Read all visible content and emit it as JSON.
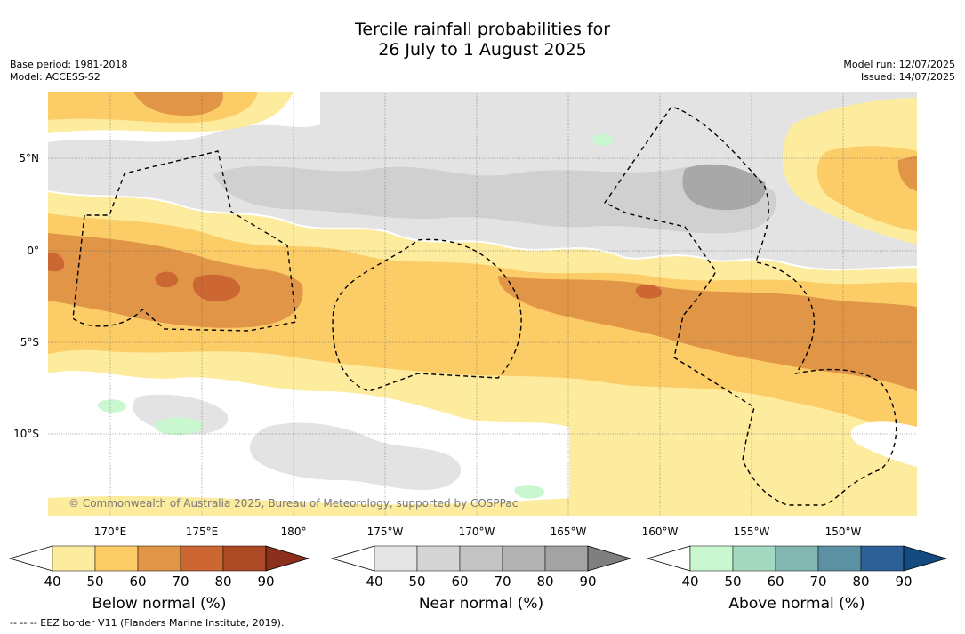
{
  "title": {
    "line1": "Tercile rainfall probabilities for",
    "line2": "26 July to 1 August 2025"
  },
  "meta": {
    "base_period": "Base period: 1981-2018",
    "model": "Model: ACCESS-S2",
    "model_run": "Model run: 12/07/2025",
    "issued": "Issued: 14/07/2025"
  },
  "map": {
    "latitude_labels": [
      "5°N",
      "0°",
      "5°S",
      "10°S"
    ],
    "longitude_labels": [
      "170°E",
      "175°E",
      "180°",
      "175°W",
      "170°W",
      "165°W",
      "160°W",
      "155°W",
      "150°W"
    ],
    "copyright": "© Commonwealth of Australia 2025, Bureau of Meteorology, supported by COSPPac",
    "colors": {
      "ocean_white": "#ffffff",
      "near_40": "#e3e3e3",
      "near_50": "#d0d0d0",
      "near_60": "#a8a8a8",
      "below_40": "#fdeb9e",
      "below_50": "#fccc67",
      "below_60": "#e09547",
      "below_70": "#cc6633",
      "above_40": "#c9f7cf"
    }
  },
  "colorbars": [
    {
      "name": "below",
      "label": "Below normal (%)",
      "ticks": [
        "40",
        "50",
        "60",
        "70",
        "80",
        "90"
      ],
      "colors": [
        "#fdeb9e",
        "#fccc67",
        "#e09547",
        "#cc6633",
        "#ad4a26",
        "#8b2e1b"
      ]
    },
    {
      "name": "near",
      "label": "Near normal (%)",
      "ticks": [
        "40",
        "50",
        "60",
        "70",
        "80",
        "90"
      ],
      "colors": [
        "#e5e5e5",
        "#d4d4d4",
        "#c3c3c3",
        "#b3b3b3",
        "#a3a3a3",
        "#7f7f7f"
      ]
    },
    {
      "name": "above",
      "label": "Above normal (%)",
      "ticks": [
        "40",
        "50",
        "60",
        "70",
        "80",
        "90"
      ],
      "colors": [
        "#c9f7cf",
        "#a5d8c0",
        "#83b7b2",
        "#5b91a3",
        "#2d6096",
        "#134a80"
      ]
    }
  ],
  "footer": "--  --  -- EEZ border V11 (Flanders Marine Institute, 2019)."
}
